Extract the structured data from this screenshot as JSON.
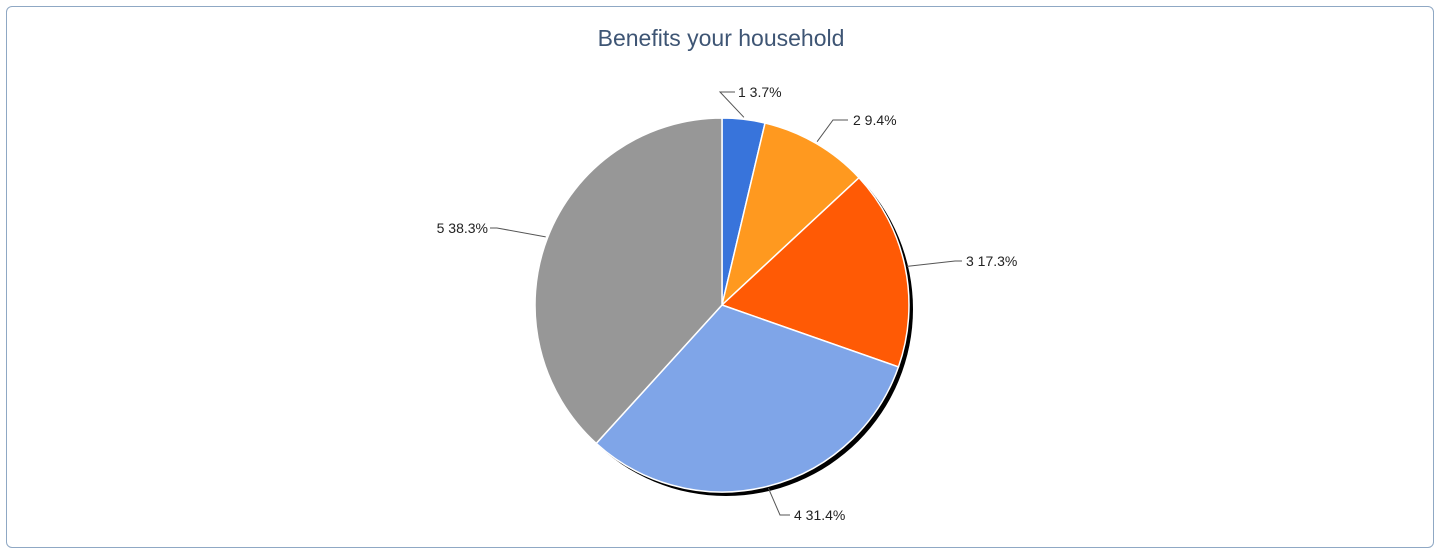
{
  "chart_data": {
    "type": "pie",
    "title": "Benefits your household",
    "categories": [
      "1",
      "2",
      "3",
      "4",
      "5"
    ],
    "values": [
      3.7,
      9.4,
      17.3,
      31.4,
      38.3
    ],
    "value_labels": [
      "3.7%",
      "9.4%",
      "17.3%",
      "31.4%",
      "38.3%"
    ],
    "colors": [
      "#3874db",
      "#ff991f",
      "#ff5a05",
      "#7fa5e8",
      "#979797"
    ],
    "start_angle": "12 o'clock",
    "direction": "clockwise",
    "legend": "none",
    "label_style": "category and percent with leader lines"
  }
}
